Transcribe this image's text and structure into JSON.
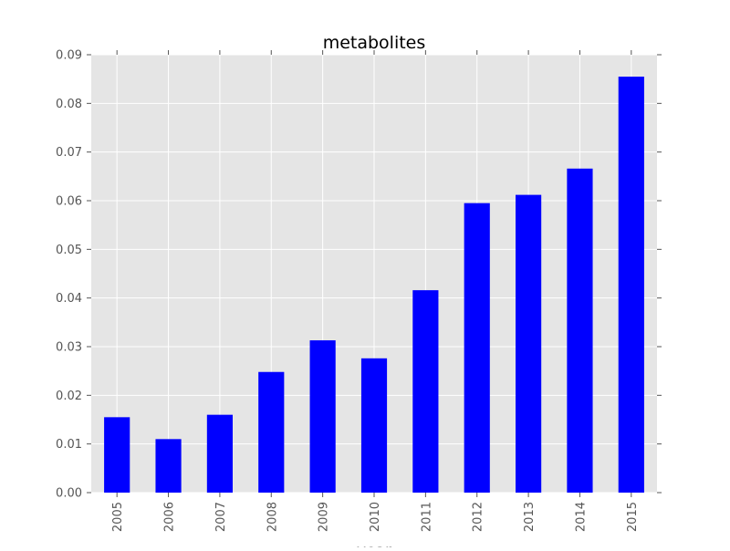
{
  "chart_data": {
    "type": "bar",
    "title": "metabolites",
    "xlabel": "year",
    "ylabel": "",
    "categories": [
      "2005",
      "2006",
      "2007",
      "2008",
      "2009",
      "2010",
      "2011",
      "2012",
      "2013",
      "2014",
      "2015"
    ],
    "values": [
      0.0155,
      0.011,
      0.016,
      0.0248,
      0.0313,
      0.0276,
      0.0416,
      0.0595,
      0.0612,
      0.0666,
      0.0855
    ],
    "ylim": [
      0,
      0.09
    ],
    "yticks": [
      "0.00",
      "0.01",
      "0.02",
      "0.03",
      "0.04",
      "0.05",
      "0.06",
      "0.07",
      "0.08",
      "0.09"
    ],
    "grid": true,
    "legend": "none",
    "colors": {
      "bar": "#0000ff",
      "plot_background": "#e5e5e5",
      "grid": "#ffffff",
      "text": "#555555",
      "title": "#000000"
    }
  }
}
